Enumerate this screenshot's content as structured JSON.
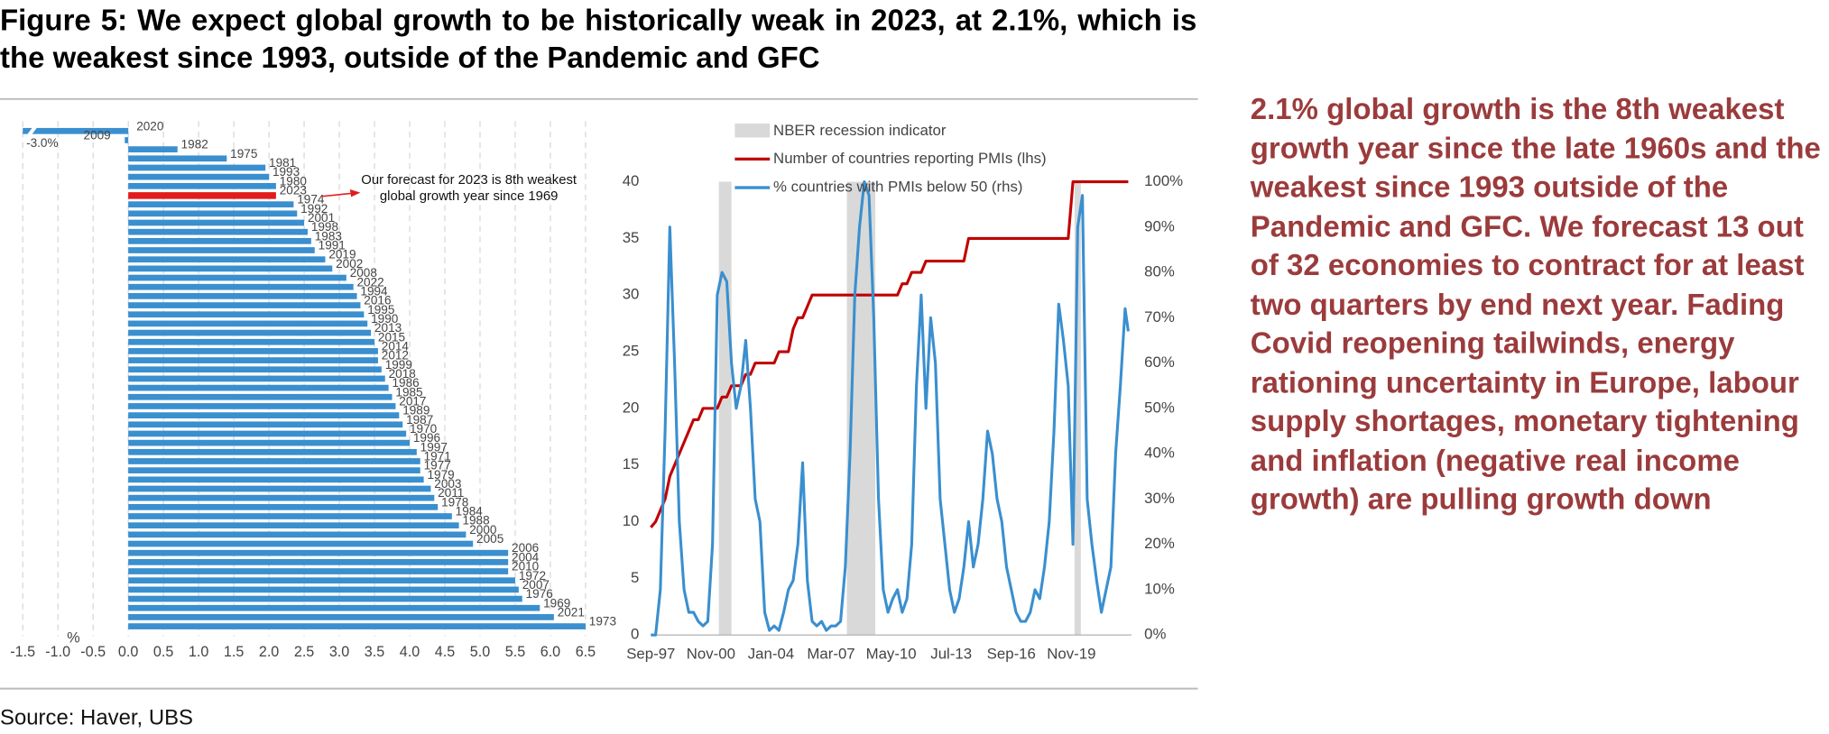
{
  "header": {
    "title": "Figure 5: We expect global growth to be historically weak in 2023, at 2.1%, which is the weakest since 1993, outside of the Pandemic and GFC"
  },
  "chart_data": [
    {
      "type": "bar",
      "orientation": "horizontal",
      "categories": [
        "2020",
        "2009",
        "1982",
        "1975",
        "1981",
        "1993",
        "1980",
        "2023",
        "1974",
        "1992",
        "2001",
        "1998",
        "1983",
        "1991",
        "2019",
        "2002",
        "2008",
        "2022",
        "1994",
        "2016",
        "1995",
        "1990",
        "2013",
        "2015",
        "2014",
        "2012",
        "1999",
        "2018",
        "1986",
        "1985",
        "2017",
        "1989",
        "1987",
        "1970",
        "1996",
        "1997",
        "1971",
        "1977",
        "1979",
        "2003",
        "2011",
        "1978",
        "1984",
        "1988",
        "2000",
        "2005",
        "2006",
        "2004",
        "2010",
        "1972",
        "2007",
        "1976",
        "1969",
        "2021",
        "1973"
      ],
      "values": [
        -3.0,
        -0.05,
        0.7,
        1.4,
        1.95,
        2.0,
        2.1,
        2.1,
        2.35,
        2.4,
        2.5,
        2.55,
        2.6,
        2.65,
        2.8,
        2.9,
        3.1,
        3.2,
        3.25,
        3.3,
        3.35,
        3.4,
        3.45,
        3.5,
        3.55,
        3.55,
        3.6,
        3.65,
        3.7,
        3.75,
        3.8,
        3.85,
        3.9,
        3.95,
        4.0,
        4.1,
        4.15,
        4.15,
        4.2,
        4.3,
        4.35,
        4.4,
        4.6,
        4.7,
        4.8,
        4.9,
        5.4,
        5.4,
        5.4,
        5.5,
        5.55,
        5.6,
        5.85,
        6.05,
        6.5
      ],
      "value_labels": [
        "-3.0%",
        null,
        null,
        null,
        null,
        null,
        null,
        null,
        null,
        null,
        null,
        null,
        null,
        null,
        null,
        null,
        null,
        null,
        null,
        null,
        null,
        null,
        null,
        null,
        null,
        null,
        null,
        null,
        null,
        null,
        null,
        null,
        null,
        null,
        null,
        null,
        null,
        null,
        null,
        null,
        null,
        null,
        null,
        null,
        null,
        null,
        null,
        null,
        null,
        null,
        null,
        null,
        null,
        null,
        null
      ],
      "color": "#3a8fcf",
      "highlight": {
        "category": "2023",
        "color": "#e31b1b"
      },
      "xlim": [
        -1.5,
        6.5
      ],
      "xticks": [
        -1.5,
        {
          "value": -1,
          "label": "-1.0"
        },
        -0.5,
        {
          "value": 0,
          "label": "0.0"
        },
        0.5,
        {
          "value": 1,
          "label": "1.0"
        },
        1.5,
        {
          "value": 2,
          "label": "2.0"
        },
        2.5,
        {
          "value": 3,
          "label": "3.0"
        },
        3.5,
        {
          "value": 4,
          "label": "4.0"
        },
        4.5,
        {
          "value": 5,
          "label": "5.0"
        },
        5.5,
        {
          "value": 6,
          "label": "6.0"
        },
        6.5
      ],
      "x_label": "%",
      "grid": true,
      "annotation": "Our forecast for 2023 is 8th weakest global growth year since 1969"
    },
    {
      "type": "line",
      "x": [
        "1997-09",
        "1997-12",
        "1998-03",
        "1998-06",
        "1998-09",
        "1998-12",
        "1999-03",
        "1999-06",
        "1999-09",
        "1999-12",
        "2000-03",
        "2000-06",
        "2000-09",
        "2000-12",
        "2001-03",
        "2001-06",
        "2001-09",
        "2001-12",
        "2002-03",
        "2002-06",
        "2002-09",
        "2002-12",
        "2003-03",
        "2003-06",
        "2003-09",
        "2003-12",
        "2004-03",
        "2004-06",
        "2004-09",
        "2004-12",
        "2005-03",
        "2005-06",
        "2005-09",
        "2005-12",
        "2006-03",
        "2006-06",
        "2006-09",
        "2006-12",
        "2007-03",
        "2007-06",
        "2007-09",
        "2007-12",
        "2008-03",
        "2008-06",
        "2008-09",
        "2008-12",
        "2009-03",
        "2009-06",
        "2009-09",
        "2009-12",
        "2010-03",
        "2010-06",
        "2010-09",
        "2010-12",
        "2011-03",
        "2011-06",
        "2011-09",
        "2011-12",
        "2012-03",
        "2012-06",
        "2012-09",
        "2012-12",
        "2013-03",
        "2013-06",
        "2013-09",
        "2013-12",
        "2014-03",
        "2014-06",
        "2014-09",
        "2014-12",
        "2015-03",
        "2015-06",
        "2015-09",
        "2015-12",
        "2016-03",
        "2016-06",
        "2016-09",
        "2016-12",
        "2017-03",
        "2017-06",
        "2017-09",
        "2017-12",
        "2018-03",
        "2018-06",
        "2018-09",
        "2018-12",
        "2019-03",
        "2019-06",
        "2019-09",
        "2019-12",
        "2020-03",
        "2020-06",
        "2020-09",
        "2020-12",
        "2021-03",
        "2021-06",
        "2021-09",
        "2021-12",
        "2022-03",
        "2022-06",
        "2022-09",
        "2022-11"
      ],
      "xlim": [
        "1997-09",
        "2023-01"
      ],
      "xticks": [
        {
          "value": "1997-09",
          "label": "Sep-97"
        },
        {
          "value": "2000-11",
          "label": "Nov-00"
        },
        {
          "value": "2004-01",
          "label": "Jan-04"
        },
        {
          "value": "2007-03",
          "label": "Mar-07"
        },
        {
          "value": "2010-05",
          "label": "May-10"
        },
        {
          "value": "2013-07",
          "label": "Jul-13"
        },
        {
          "value": "2016-09",
          "label": "Sep-16"
        },
        {
          "value": "2019-11",
          "label": "Nov-19"
        }
      ],
      "ylim": [
        0,
        40
      ],
      "yticks": [
        0,
        5,
        10,
        15,
        20,
        25,
        30,
        35,
        40
      ],
      "y2lim": [
        0,
        100
      ],
      "y2ticks": [
        {
          "value": 0,
          "label": "0%"
        },
        {
          "value": 10,
          "label": "10%"
        },
        {
          "value": 20,
          "label": "20%"
        },
        {
          "value": 30,
          "label": "30%"
        },
        {
          "value": 40,
          "label": "40%"
        },
        {
          "value": 50,
          "label": "50%"
        },
        {
          "value": 60,
          "label": "60%"
        },
        {
          "value": 70,
          "label": "70%"
        },
        {
          "value": 80,
          "label": "80%"
        },
        {
          "value": 90,
          "label": "90%"
        },
        {
          "value": 100,
          "label": "100%"
        }
      ],
      "recessions": {
        "name": "NBER recession indicator",
        "color": "#d9d9d9",
        "periods": [
          [
            "2001-04",
            "2001-12"
          ],
          [
            "2008-01",
            "2009-07"
          ],
          [
            "2020-01",
            "2020-05"
          ]
        ]
      },
      "series": [
        {
          "name": "Number of countries reporting PMIs (lhs)",
          "color": "#c00000",
          "values": [
            9.5,
            10,
            11,
            12,
            14,
            15,
            16,
            17,
            18,
            19,
            19,
            20,
            20,
            20,
            20,
            21,
            21,
            22,
            22,
            22,
            23,
            23,
            24,
            24,
            24,
            24,
            24,
            25,
            25,
            25,
            27,
            28,
            28,
            29,
            30,
            30,
            30,
            30,
            30,
            30,
            30,
            30,
            30,
            30,
            30,
            30,
            30,
            30,
            30,
            30,
            30,
            30,
            30,
            31,
            31,
            32,
            32,
            32,
            33,
            33,
            33,
            33,
            33,
            33,
            33,
            33,
            33,
            35,
            35,
            35,
            35,
            35,
            35,
            35,
            35,
            35,
            35,
            35,
            35,
            35,
            35,
            35,
            35,
            35,
            35,
            35,
            35,
            35,
            35,
            40,
            40,
            40,
            40,
            40,
            40,
            40,
            40,
            40,
            40,
            40,
            40,
            40
          ]
        },
        {
          "name": "% countries with PMIs below 50 (rhs)",
          "color": "#3a8fcf",
          "axis": "y2",
          "values": [
            0,
            0,
            10,
            45,
            90,
            60,
            25,
            10,
            5,
            5,
            3,
            2,
            3,
            20,
            75,
            80,
            78,
            60,
            50,
            55,
            65,
            50,
            30,
            25,
            5,
            1,
            2,
            1,
            5,
            10,
            12,
            20,
            38,
            12,
            3,
            2,
            3,
            1,
            2,
            2,
            3,
            15,
            40,
            75,
            90,
            100,
            97,
            70,
            30,
            10,
            5,
            8,
            10,
            5,
            8,
            20,
            55,
            75,
            50,
            70,
            60,
            30,
            20,
            10,
            5,
            8,
            15,
            25,
            15,
            20,
            30,
            45,
            40,
            30,
            25,
            15,
            10,
            5,
            3,
            3,
            5,
            10,
            8,
            15,
            25,
            45,
            73,
            65,
            55,
            20,
            90,
            97,
            30,
            20,
            12,
            5,
            10,
            15,
            40,
            55,
            72,
            67
          ]
        }
      ]
    }
  ],
  "commentary": {
    "text": "2.1% global growth is the 8th weakest growth year since the late 1960s and the weakest since 1993 outside of the Pandemic and GFC. We forecast 13 out of 32 economies to contract for at least two quarters by end next year. Fading Covid reopening tailwinds, energy rationing uncertainty in Europe, labour supply shortages, monetary tightening and inflation (negative real income growth) are pulling growth down"
  },
  "footer": {
    "source": "Source: Haver, UBS"
  }
}
